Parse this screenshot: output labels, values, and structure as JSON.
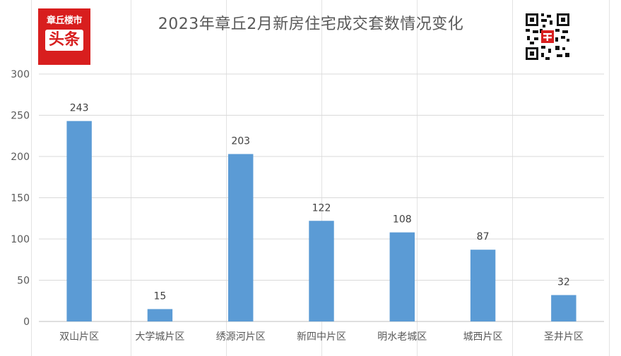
{
  "logo": {
    "line1": "章丘楼市",
    "line2": "头条"
  },
  "chart_data": {
    "type": "bar",
    "title": "2023年章丘2月新房住宅成交套数情况变化",
    "categories": [
      "双山片区",
      "大学城片区",
      "绣源河片区",
      "新四中片区",
      "明水老城区",
      "城西片区",
      "圣井片区"
    ],
    "values": [
      243,
      15,
      203,
      122,
      108,
      87,
      32
    ],
    "ylim": [
      0,
      300
    ],
    "yticks": [
      0,
      50,
      100,
      150,
      200,
      250,
      300
    ],
    "xlabel": "",
    "ylabel": "",
    "grid": true,
    "legend": "none",
    "bar_color": "#5b9bd5",
    "data_labels": true
  }
}
